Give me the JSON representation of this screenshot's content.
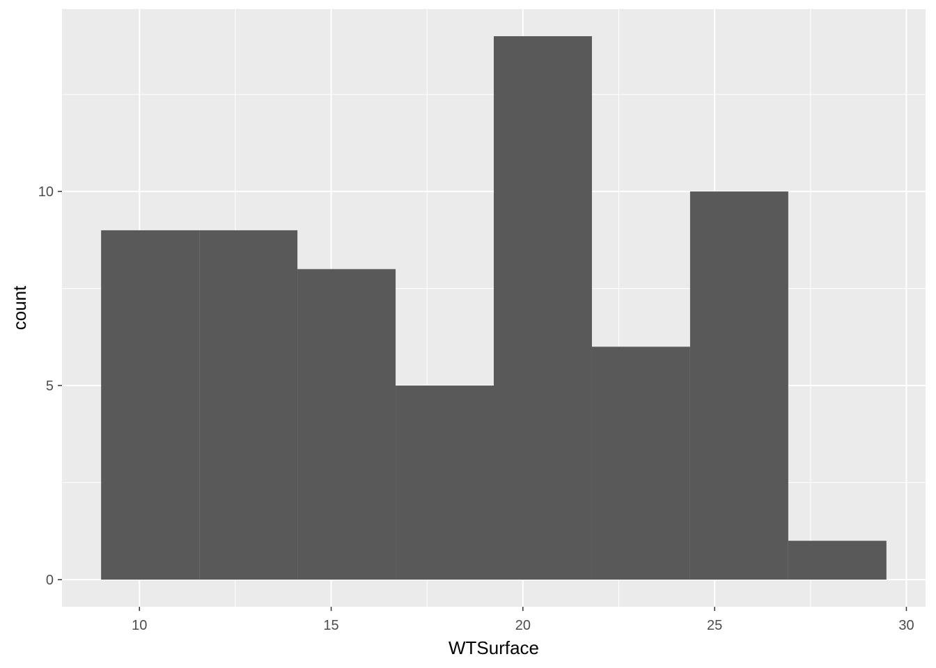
{
  "chart_data": {
    "type": "bar",
    "subtype": "histogram",
    "title": "",
    "xlabel": "WTSurface",
    "ylabel": "count",
    "bins": [
      {
        "x0": 9.0,
        "x1": 11.56,
        "count": 9
      },
      {
        "x0": 11.56,
        "x1": 14.12,
        "count": 9
      },
      {
        "x0": 14.12,
        "x1": 16.68,
        "count": 8
      },
      {
        "x0": 16.68,
        "x1": 19.24,
        "count": 5
      },
      {
        "x0": 19.24,
        "x1": 21.8,
        "count": 14
      },
      {
        "x0": 21.8,
        "x1": 24.36,
        "count": 6
      },
      {
        "x0": 24.36,
        "x1": 26.92,
        "count": 10
      },
      {
        "x0": 26.92,
        "x1": 29.48,
        "count": 1
      }
    ],
    "xlim": [
      7.98,
      30.5
    ],
    "ylim": [
      -0.7,
      14.7
    ],
    "x_ticks": [
      10,
      15,
      20,
      25,
      30
    ],
    "y_ticks": [
      0,
      5,
      10
    ],
    "x_tick_labels": [
      "10",
      "15",
      "20",
      "25",
      "30"
    ],
    "y_tick_labels": [
      "0",
      "5",
      "10"
    ],
    "grid": true,
    "colors": {
      "panel": "#ebebeb",
      "grid": "#ffffff",
      "bar": "#595959"
    }
  }
}
